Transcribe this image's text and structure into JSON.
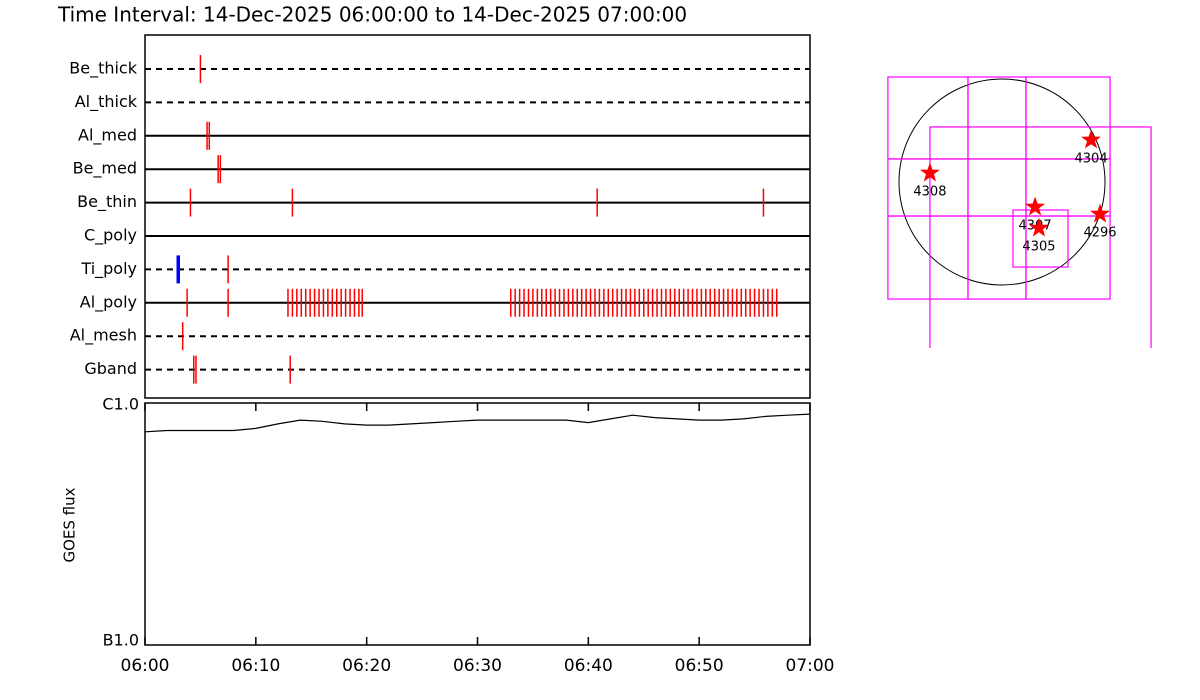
{
  "chart_data": [
    {
      "type": "timeline",
      "title": "Time Interval: 14-Dec-2025 06:00:00 to 14-Dec-2025 07:00:00",
      "xlim": [
        0,
        60
      ],
      "color": "#ff0000",
      "rows": [
        {
          "name": "Be_thick",
          "style": "dashed",
          "events": [
            5.0
          ]
        },
        {
          "name": "Al_thick",
          "style": "dashed",
          "events": []
        },
        {
          "name": "Al_med",
          "style": "solid",
          "events": [
            5.6,
            5.8
          ]
        },
        {
          "name": "Be_med",
          "style": "solid",
          "events": [
            6.6,
            6.8
          ]
        },
        {
          "name": "Be_thin",
          "style": "solid",
          "events": [
            4.1,
            13.3,
            40.8,
            55.8
          ]
        },
        {
          "name": "C_poly",
          "style": "solid",
          "events": []
        },
        {
          "name": "Ti_poly",
          "style": "dashed",
          "events": [
            3.0,
            7.5
          ],
          "event_colors": [
            "#0000ff",
            "#ff0000"
          ]
        },
        {
          "name": "Al_poly",
          "style": "solid",
          "events": [
            3.8,
            7.5,
            12.9,
            13.3,
            13.7,
            14.1,
            14.5,
            14.9,
            15.3,
            15.7,
            16.1,
            16.5,
            16.9,
            17.3,
            17.7,
            18.1,
            18.5,
            18.9,
            19.3,
            19.6,
            33.0,
            33.4,
            33.8,
            34.2,
            34.6,
            35.0,
            35.4,
            35.8,
            36.2,
            36.6,
            37.0,
            37.4,
            37.8,
            38.2,
            38.6,
            39.0,
            39.4,
            39.8,
            40.2,
            40.6,
            41.0,
            41.4,
            41.8,
            42.2,
            42.6,
            43.0,
            43.4,
            43.8,
            44.2,
            44.6,
            45.0,
            45.4,
            45.8,
            46.2,
            46.6,
            47.0,
            47.4,
            47.8,
            48.2,
            48.6,
            49.0,
            49.4,
            49.8,
            50.2,
            50.6,
            51.0,
            51.4,
            51.8,
            52.2,
            52.6,
            53.0,
            53.4,
            53.8,
            54.2,
            54.6,
            55.0,
            55.4,
            55.8,
            56.2,
            56.6,
            57.0
          ]
        },
        {
          "name": "Al_mesh",
          "style": "dashed",
          "events": [
            3.4
          ]
        },
        {
          "name": "Gband",
          "style": "dashed",
          "events": [
            4.4,
            4.6,
            13.1
          ]
        }
      ]
    },
    {
      "type": "line",
      "ylabel": "GOES flux",
      "log_scale": true,
      "color": "#000000",
      "xlim": [
        0,
        60
      ],
      "xticks": [
        {
          "value": 0,
          "label": "06:00"
        },
        {
          "value": 10,
          "label": "06:10"
        },
        {
          "value": 20,
          "label": "06:20"
        },
        {
          "value": 30,
          "label": "06:30"
        },
        {
          "value": 40,
          "label": "06:40"
        },
        {
          "value": 50,
          "label": "06:50"
        },
        {
          "value": 60,
          "label": "07:00"
        }
      ],
      "ylim": [
        1e-07,
        1e-06
      ],
      "yticks": [
        {
          "value": 1e-07,
          "label": "B1.0"
        },
        {
          "value": 1e-06,
          "label": "C1.0"
        }
      ],
      "x": [
        0,
        2,
        4,
        6,
        8,
        10,
        12,
        14,
        16,
        18,
        20,
        22,
        24,
        26,
        28,
        30,
        32,
        34,
        36,
        38,
        40,
        42,
        44,
        46,
        48,
        50,
        52,
        54,
        56,
        58,
        60
      ],
      "values": [
        7.6e-07,
        7.7e-07,
        7.7e-07,
        7.7e-07,
        7.7e-07,
        7.85e-07,
        8.2e-07,
        8.5e-07,
        8.4e-07,
        8.2e-07,
        8.1e-07,
        8.1e-07,
        8.2e-07,
        8.3e-07,
        8.4e-07,
        8.5e-07,
        8.5e-07,
        8.5e-07,
        8.5e-07,
        8.5e-07,
        8.3e-07,
        8.6e-07,
        8.9e-07,
        8.7e-07,
        8.6e-07,
        8.5e-07,
        8.5e-07,
        8.6e-07,
        8.8e-07,
        8.9e-07,
        9e-07
      ]
    },
    {
      "type": "map",
      "disk_radius": 975,
      "box_color": "#ff00ff",
      "star_color": "#ff0000",
      "fov_boxes": [
        [
          -1080,
          218,
          -322,
          994
        ],
        [
          -322,
          218,
          227,
          994
        ],
        [
          227,
          218,
          1023,
          994
        ],
        [
          -1080,
          -322,
          -322,
          218
        ],
        [
          -322,
          -322,
          227,
          218
        ],
        [
          227,
          -322,
          1023,
          218
        ],
        [
          -1080,
          -1108,
          -322,
          -322
        ],
        [
          -322,
          -1108,
          227,
          -322
        ],
        [
          227,
          -1108,
          1023,
          -322
        ],
        [
          -682,
          -1581,
          1411,
          521
        ],
        [
          104,
          -805,
          625,
          -265
        ]
      ],
      "regions": [
        {
          "label": "4304",
          "x": 843,
          "y": 398
        },
        {
          "label": "4308",
          "x": -682,
          "y": 85
        },
        {
          "label": "4307",
          "x": 313,
          "y": -237
        },
        {
          "label": "4305",
          "x": 350,
          "y": -436
        },
        {
          "label": "4296",
          "x": 928,
          "y": -303
        }
      ]
    }
  ]
}
